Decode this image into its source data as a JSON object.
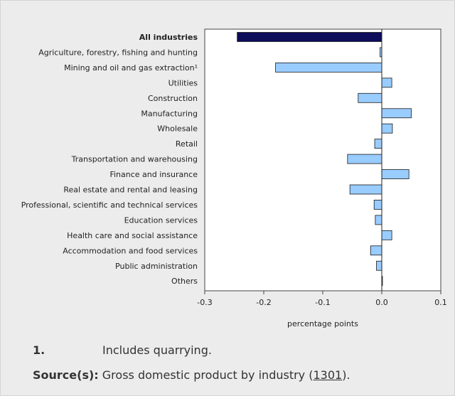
{
  "chart_data": {
    "type": "bar",
    "orientation": "horizontal",
    "xlabel": "percentage points",
    "xlim": [
      -0.3,
      0.1
    ],
    "xticks": [
      -0.3,
      -0.2,
      -0.1,
      0.0,
      0.1
    ],
    "xtick_labels": [
      "-0.3",
      "-0.2",
      "-0.1",
      "0.0",
      "0.1"
    ],
    "categories": [
      "All industries",
      "Agriculture, forestry, fishing and hunting",
      "Mining and oil and gas extraction¹",
      "Utilities",
      "Construction",
      "Manufacturing",
      "Wholesale",
      "Retail",
      "Transportation and warehousing",
      "Finance and insurance",
      "Real estate and rental and leasing",
      "Professional, scientific and technical services",
      "Education services",
      "Health care and social assistance",
      "Accommodation and food services",
      "Public administration",
      "Others"
    ],
    "values": [
      -0.245,
      -0.003,
      -0.18,
      0.017,
      -0.04,
      0.05,
      0.018,
      -0.012,
      -0.058,
      0.046,
      -0.054,
      -0.013,
      -0.011,
      0.017,
      -0.019,
      -0.009,
      0.001
    ],
    "highlight_category": "All industries",
    "colors": {
      "total": "#0d0d5c",
      "bar": "#99ccff",
      "stroke": "#1a1a1a"
    }
  },
  "footnote": {
    "number": "1.",
    "text": "Includes quarrying."
  },
  "source": {
    "label": "Source(s):",
    "text_before": "Gross domestic product by industry (",
    "link_text": "1301",
    "text_after": ")."
  }
}
